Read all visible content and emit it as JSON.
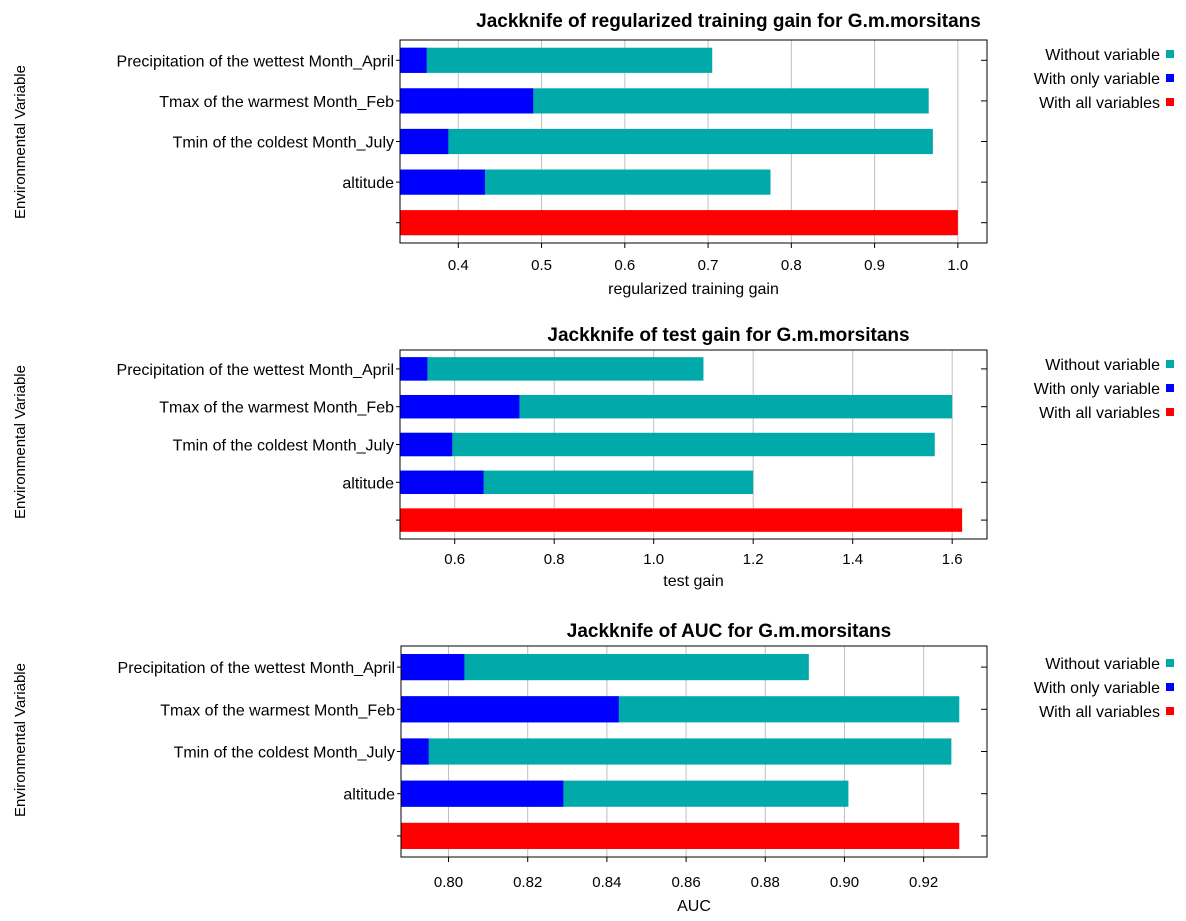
{
  "colors": {
    "without": "#00aaaa",
    "only": "#0000ff",
    "all": "#ff0000",
    "grid": "#c0c0c0",
    "axis": "#000000"
  },
  "chart_data": [
    {
      "type": "bar",
      "orientation": "horizontal",
      "title": "Jackknife of regularized training gain for G.m.morsitans",
      "xlabel": "regularized training gain",
      "ylabel": "Environmental Variable",
      "xlim": [
        0.33,
        1.035
      ],
      "ticks": [
        "0.4",
        "0.5",
        "0.6",
        "0.7",
        "0.8",
        "0.9",
        "1.0"
      ],
      "grid": true,
      "legend_position": "right",
      "categories": [
        "Precipitation of the wettest Month_April",
        "Tmax of the warmest Month_Feb",
        "Tmin of the coldest Month_July",
        "altitude"
      ],
      "series": [
        {
          "name": "Without variable",
          "values": [
            0.705,
            0.965,
            0.97,
            0.775
          ]
        },
        {
          "name": "With only variable",
          "values": [
            0.362,
            0.49,
            0.388,
            0.432
          ]
        }
      ],
      "all_variables": {
        "name": "With all variables",
        "value": 1.0
      }
    },
    {
      "type": "bar",
      "orientation": "horizontal",
      "title": "Jackknife of test gain for G.m.morsitans",
      "xlabel": "test gain",
      "ylabel": "Environmental Variable",
      "xlim": [
        0.49,
        1.67
      ],
      "ticks": [
        "0.6",
        "0.8",
        "1.0",
        "1.2",
        "1.4",
        "1.6"
      ],
      "grid": true,
      "legend_position": "right",
      "categories": [
        "Precipitation of the wettest Month_April",
        "Tmax of the warmest Month_Feb",
        "Tmin of the coldest Month_July",
        "altitude"
      ],
      "series": [
        {
          "name": "Without variable",
          "values": [
            1.1,
            1.6,
            1.565,
            1.2
          ]
        },
        {
          "name": "With only variable",
          "values": [
            0.545,
            0.73,
            0.595,
            0.658
          ]
        }
      ],
      "all_variables": {
        "name": "With all variables",
        "value": 1.62
      }
    },
    {
      "type": "bar",
      "orientation": "horizontal",
      "title": "Jackknife of AUC for G.m.morsitans",
      "xlabel": "AUC",
      "ylabel": "Environmental Variable",
      "xlim": [
        0.788,
        0.936
      ],
      "ticks": [
        "0.80",
        "0.82",
        "0.84",
        "0.86",
        "0.88",
        "0.90",
        "0.92"
      ],
      "grid": true,
      "legend_position": "right",
      "categories": [
        "Precipitation of the wettest Month_April",
        "Tmax of the warmest Month_Feb",
        "Tmin of the coldest Month_July",
        "altitude"
      ],
      "series": [
        {
          "name": "Without variable",
          "values": [
            0.891,
            0.929,
            0.927,
            0.901
          ]
        },
        {
          "name": "With only variable",
          "values": [
            0.804,
            0.843,
            0.795,
            0.829
          ]
        }
      ],
      "all_variables": {
        "name": "With all variables",
        "value": 0.929
      }
    }
  ]
}
